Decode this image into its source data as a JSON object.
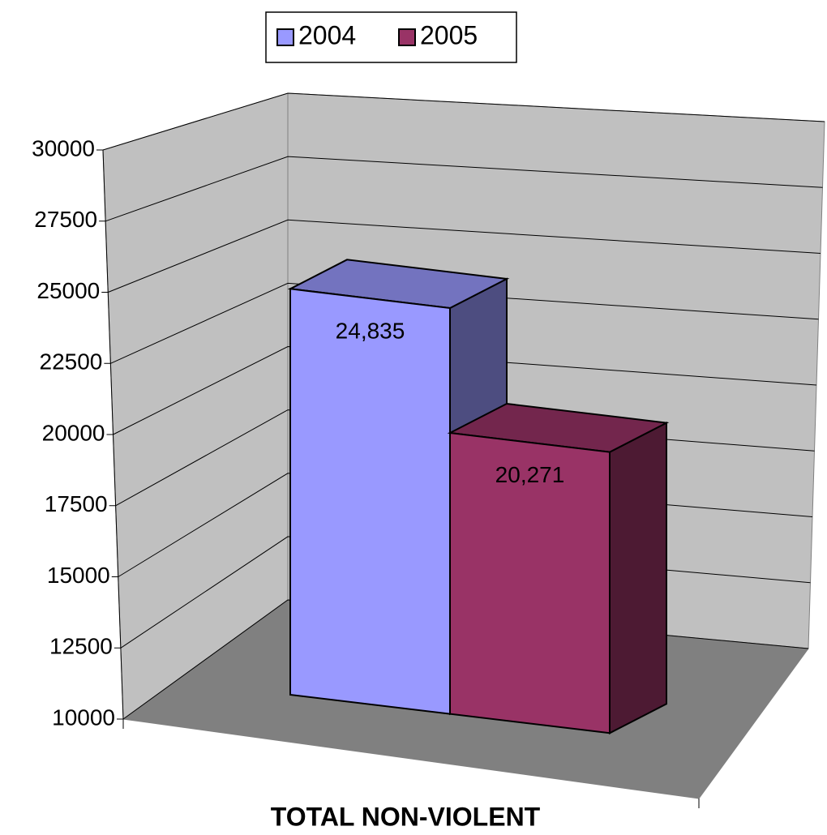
{
  "chart_data": {
    "type": "bar3d",
    "categories": [
      "TOTAL NON-VIOLENT"
    ],
    "series": [
      {
        "name": "2004",
        "color": "#9999ff",
        "values": [
          24835
        ],
        "value_labels": [
          "24,835"
        ]
      },
      {
        "name": "2005",
        "color": "#993366",
        "values": [
          20271
        ],
        "value_labels": [
          "20,271"
        ]
      }
    ],
    "ylim": [
      10000,
      30000
    ],
    "yticks": [
      10000,
      12500,
      15000,
      17500,
      20000,
      22500,
      25000,
      27500,
      30000
    ],
    "grid": true,
    "legend": "top"
  }
}
